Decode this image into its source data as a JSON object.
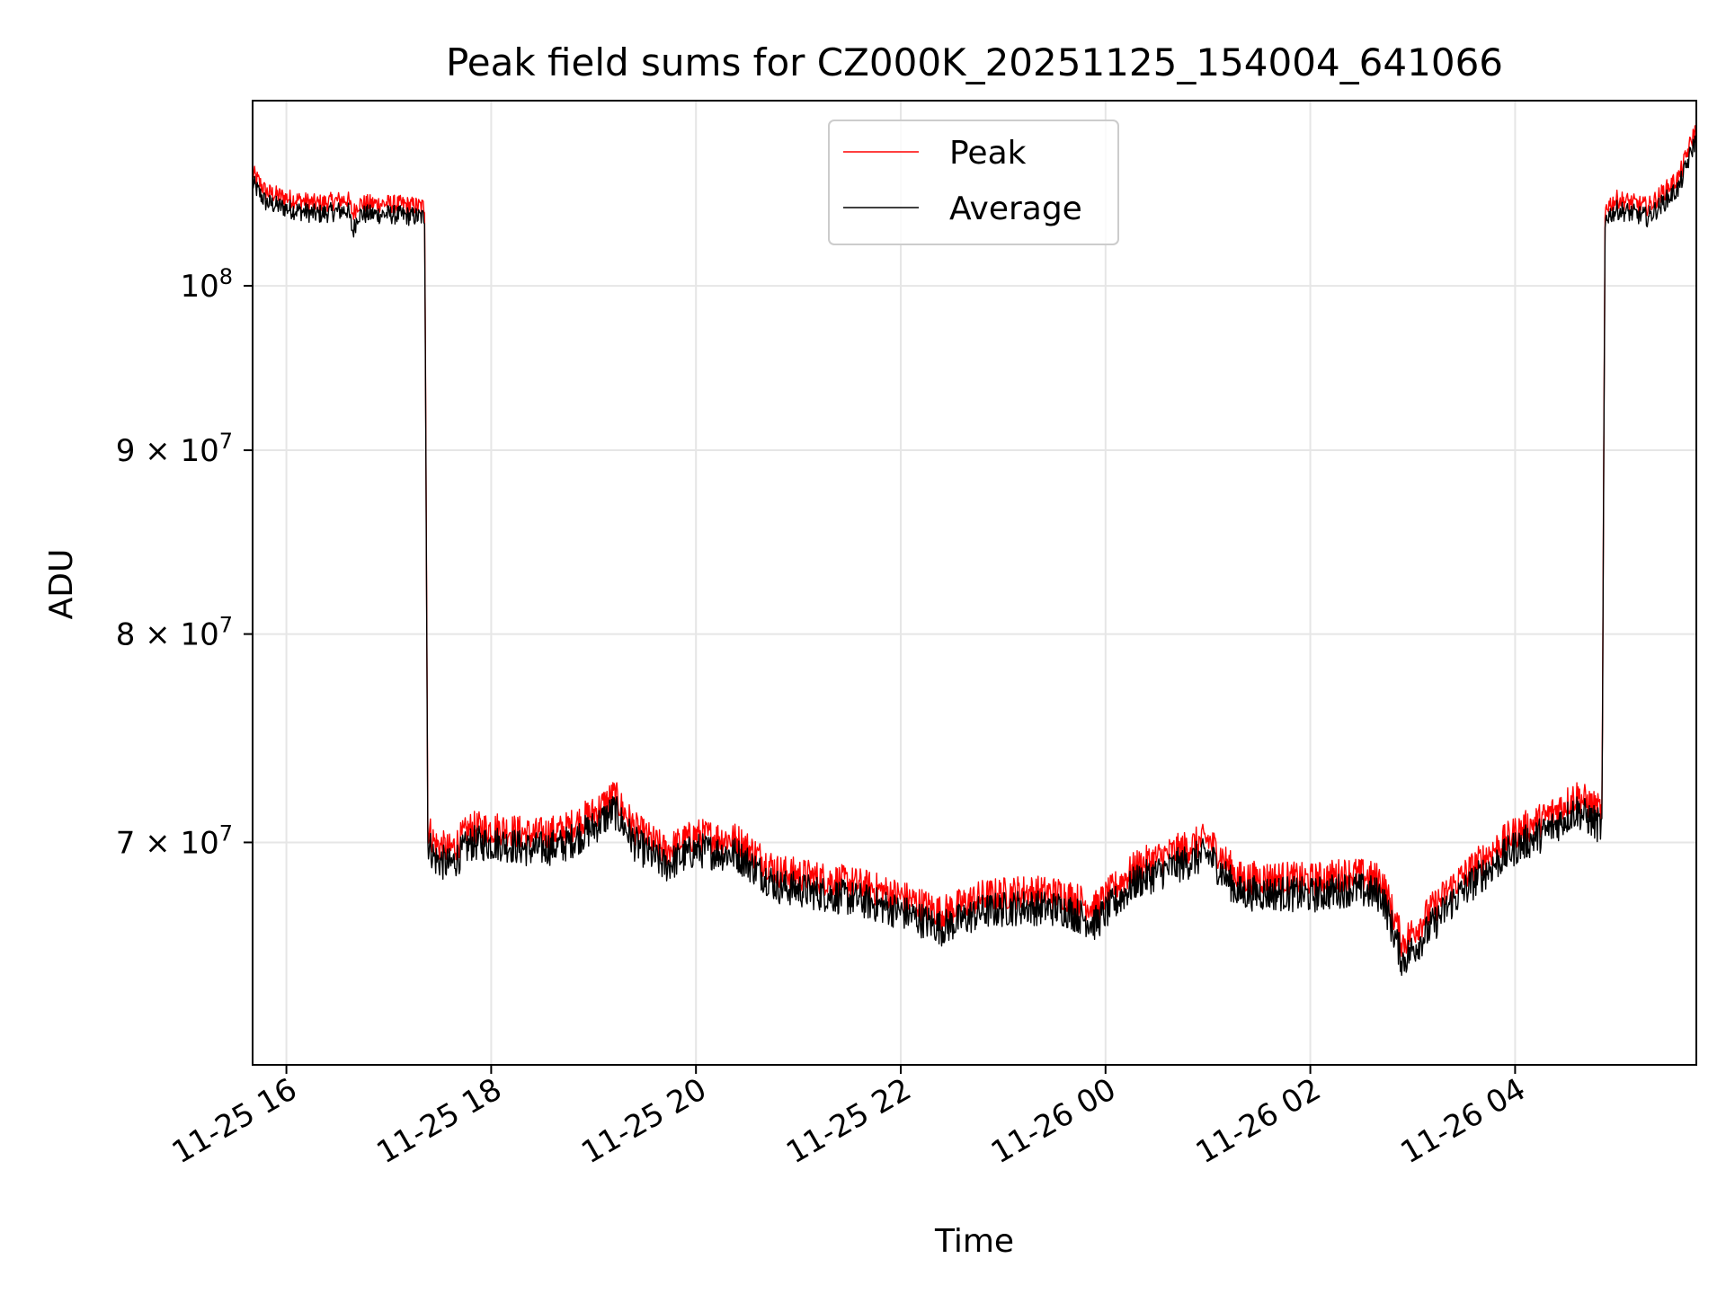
{
  "chart_data": {
    "type": "line",
    "title": "Peak field sums for CZ000K_20251125_154004_641066",
    "xlabel": "Time",
    "ylabel": "ADU",
    "yscale": "log",
    "grid": true,
    "legend_position": "upper-center",
    "xlim_hours": [
      15.67,
      29.77
    ],
    "ylim": [
      60700000,
      112600000
    ],
    "x_ticks": [
      {
        "value": 16,
        "label": "11-25 16"
      },
      {
        "value": 18,
        "label": "11-25 18"
      },
      {
        "value": 20,
        "label": "11-25 20"
      },
      {
        "value": 22,
        "label": "11-25 22"
      },
      {
        "value": 24,
        "label": "11-26 00"
      },
      {
        "value": 26,
        "label": "11-26 02"
      },
      {
        "value": 28,
        "label": "11-26 04"
      }
    ],
    "y_ticks": [
      {
        "value": 70000000,
        "mantissa": "7",
        "exponent": "7",
        "prefix": "7 × 10"
      },
      {
        "value": 80000000,
        "mantissa": "8",
        "exponent": "7",
        "prefix": "8 × 10"
      },
      {
        "value": 90000000,
        "mantissa": "9",
        "exponent": "7",
        "prefix": "9 × 10"
      },
      {
        "value": 100000000,
        "mantissa": "",
        "exponent": "8",
        "prefix": "10"
      }
    ],
    "series": [
      {
        "name": "Peak",
        "color": "#ff0000",
        "x": [
          15.67,
          15.8,
          16.0,
          16.3,
          16.6,
          16.65,
          16.7,
          17.0,
          17.35,
          17.38,
          17.45,
          17.6,
          17.8,
          18.1,
          18.4,
          18.7,
          19.0,
          19.2,
          19.4,
          19.7,
          20.0,
          20.4,
          20.8,
          21.2,
          21.6,
          22.0,
          22.4,
          22.8,
          23.2,
          23.6,
          23.9,
          24.3,
          24.7,
          25.0,
          25.3,
          25.7,
          26.0,
          26.4,
          26.7,
          26.9,
          27.1,
          27.4,
          27.7,
          28.0,
          28.3,
          28.6,
          28.85,
          28.88,
          29.0,
          29.3,
          29.6,
          29.77
        ],
        "values": [
          107300000,
          106000000,
          105600000,
          105200000,
          105500000,
          104500000,
          105200000,
          105200000,
          105000000,
          70600000,
          69800000,
          69500000,
          70500000,
          70500000,
          70200000,
          70400000,
          71200000,
          72000000,
          70500000,
          69500000,
          70200000,
          70000000,
          68600000,
          68300000,
          68000000,
          67500000,
          66800000,
          67500000,
          67700000,
          67600000,
          67000000,
          68800000,
          69500000,
          70000000,
          68300000,
          68300000,
          68200000,
          68500000,
          68200000,
          65500000,
          66500000,
          68000000,
          69200000,
          70300000,
          71000000,
          72000000,
          71200000,
          105000000,
          105500000,
          105000000,
          107000000,
          110500000
        ]
      },
      {
        "name": "Average",
        "color": "#000000",
        "x": [
          15.67,
          15.8,
          16.0,
          16.3,
          16.6,
          16.65,
          16.7,
          17.0,
          17.35,
          17.38,
          17.45,
          17.6,
          17.8,
          18.1,
          18.4,
          18.7,
          19.0,
          19.2,
          19.4,
          19.7,
          20.0,
          20.4,
          20.8,
          21.2,
          21.6,
          22.0,
          22.4,
          22.8,
          23.2,
          23.6,
          23.9,
          24.3,
          24.7,
          25.0,
          25.3,
          25.7,
          26.0,
          26.4,
          26.7,
          26.9,
          27.1,
          27.4,
          27.7,
          28.0,
          28.3,
          28.6,
          28.85,
          28.88,
          29.0,
          29.3,
          29.6,
          29.77
        ],
        "values": [
          107000000,
          105700000,
          105300000,
          104900000,
          105200000,
          103700000,
          104900000,
          104900000,
          104700000,
          70200000,
          69400000,
          69100000,
          70100000,
          70100000,
          69800000,
          70000000,
          70800000,
          71600000,
          70100000,
          69100000,
          69800000,
          69600000,
          68200000,
          67900000,
          67600000,
          67100000,
          66400000,
          67100000,
          67300000,
          67200000,
          66600000,
          68400000,
          69100000,
          69600000,
          67900000,
          67900000,
          67800000,
          68100000,
          67800000,
          65000000,
          66000000,
          67600000,
          68800000,
          69900000,
          70600000,
          71600000,
          70800000,
          104700000,
          105200000,
          104700000,
          106700000,
          110200000
        ]
      }
    ]
  }
}
